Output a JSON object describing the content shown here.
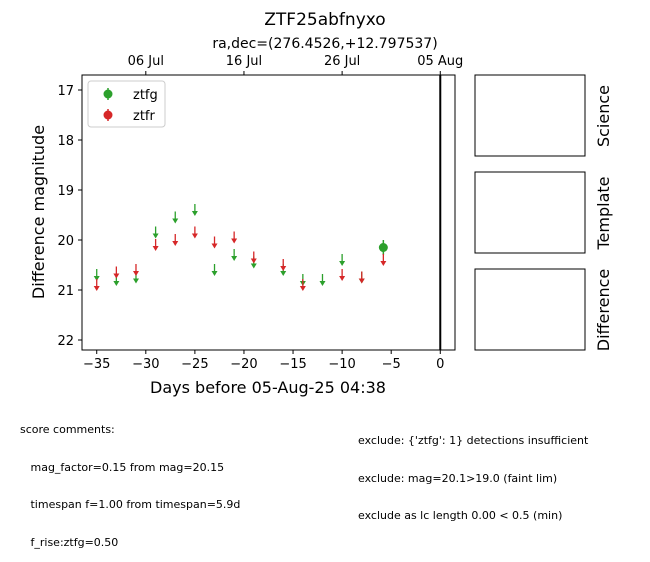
{
  "chart_data": {
    "type": "scatter",
    "title": "ZTF25abfnyxo",
    "subtitle": "ra,dec=(276.4526,+12.797537)",
    "xlabel": "Days before 05-Aug-25 04:38",
    "ylabel": "Difference magnitude",
    "xlim": [
      -36.5,
      1.5
    ],
    "ylim": [
      22.2,
      16.7
    ],
    "y_inverted": true,
    "x_ticks": [
      -35,
      -30,
      -25,
      -20,
      -15,
      -10,
      -5,
      0
    ],
    "y_ticks": [
      17,
      18,
      19,
      20,
      21,
      22
    ],
    "top_axis_ticks": [
      {
        "label": "06 Jul",
        "x": -30
      },
      {
        "label": "16 Jul",
        "x": -20
      },
      {
        "label": "26 Jul",
        "x": -10
      },
      {
        "label": "05 Aug",
        "x": 0
      }
    ],
    "vertical_line_x": 0,
    "legend_position": "upper-left",
    "series": [
      {
        "name": "ztfg",
        "color": "#2ca02c",
        "upper_limits": [
          [
            -35.0,
            20.7
          ],
          [
            -33.0,
            20.8
          ],
          [
            -31.0,
            20.75
          ],
          [
            -29.0,
            19.85
          ],
          [
            -27.0,
            19.55
          ],
          [
            -25.0,
            19.4
          ],
          [
            -23.0,
            20.6
          ],
          [
            -21.0,
            20.3
          ],
          [
            -19.0,
            20.45
          ],
          [
            -16.0,
            20.6
          ],
          [
            -14.0,
            20.8
          ],
          [
            -12.0,
            20.8
          ],
          [
            -10.0,
            20.4
          ],
          [
            -8.0,
            20.75
          ]
        ],
        "detections": [
          {
            "x": -5.8,
            "y": 20.15,
            "yerr": 0.15
          }
        ]
      },
      {
        "name": "ztfr",
        "color": "#d62728",
        "upper_limits": [
          [
            -35.0,
            20.9
          ],
          [
            -33.0,
            20.65
          ],
          [
            -31.0,
            20.6
          ],
          [
            -29.0,
            20.1
          ],
          [
            -27.0,
            20.0
          ],
          [
            -25.0,
            19.85
          ],
          [
            -23.0,
            20.05
          ],
          [
            -21.0,
            19.95
          ],
          [
            -19.0,
            20.35
          ],
          [
            -16.0,
            20.5
          ],
          [
            -14.0,
            20.9
          ],
          [
            -10.0,
            20.7
          ],
          [
            -8.0,
            20.75
          ],
          [
            -5.8,
            20.4
          ]
        ],
        "detections": []
      }
    ]
  },
  "panels": {
    "science_label": "Science",
    "template_label": "Template",
    "difference_label": "Difference"
  },
  "comments": {
    "left": [
      "score comments:",
      "   mag_factor=0.15 from mag=20.15",
      "   timespan f=1.00 from timespan=5.9d",
      "   f_rise:ztfg=0.50"
    ],
    "right": [
      "exclude: {'ztfg': 1} detections insufficient",
      "exclude: mag=20.1>19.0 (faint lim)",
      "exclude as lc length 0.00 < 0.5 (min)"
    ]
  }
}
